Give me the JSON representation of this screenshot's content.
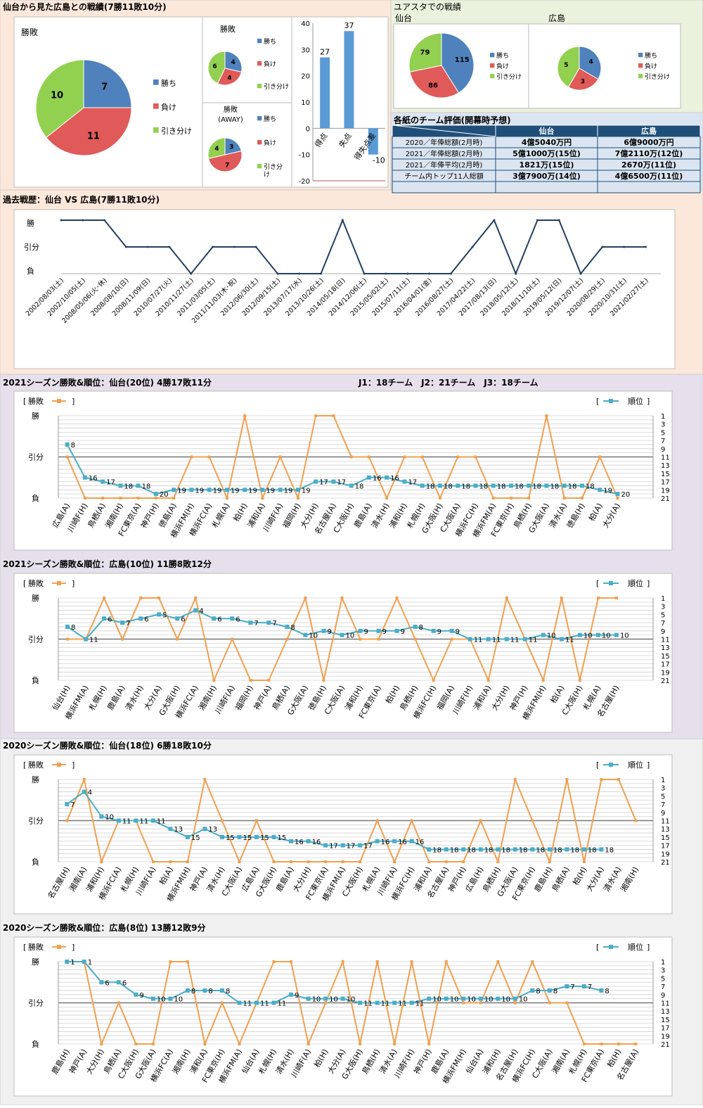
{
  "colors": {
    "win": "#4f81bd",
    "lose": "#e05a5a",
    "draw": "#92d050",
    "orange": "#f0a050",
    "teal": "#4bacc6",
    "navy": "#243f60",
    "header": "#1f4e79"
  },
  "sections": {
    "summary_title": "仙台から見た広島との戦績(7勝11敗10分)",
    "yuasuta_title": "ユアスタでの戦績",
    "yuasuta_sendai": "仙台",
    "yuasuta_hiroshima": "広島",
    "eval_title": "各紙のチーム評価(開幕時予想)",
    "history_title": "過去戦歴：仙台 VS 広島(7勝11敗10分)",
    "s2021_sendai_title": "2021シーズン勝敗&順位：仙台(20位) 4勝17敗11分",
    "league_info": "J1：18チーム　J2：21チーム　J3：18チーム",
    "s2021_hiroshima_title": "2021シーズン勝敗&順位：広島(10位) 11勝8敗12分",
    "s2020_sendai_title": "2020シーズン勝敗&順位：仙台(18位) 6勝18敗10分",
    "s2020_hiroshima_title": "2020シーズン勝敗&順位：広島(8位) 13勝12敗9分"
  },
  "legend": {
    "win": "勝ち",
    "lose": "負け",
    "draw": "引き分け",
    "draw_wrapped": [
      "引き分",
      "け"
    ],
    "result": "勝敗",
    "rank": "順位",
    "bracket_open": "[",
    "bracket_close": "]",
    "ylabel_win": "勝",
    "ylabel_draw": "引分",
    "ylabel_lose": "負"
  },
  "table": {
    "headers": [
      "",
      "仙台",
      "広島"
    ],
    "rows": [
      [
        "2020／年俸総額(2月時)",
        "4億5040万円",
        "6億9000万円"
      ],
      [
        "2021／年俸総額(2月時)",
        "5億1000万(15位)",
        "7億2110万(12位)"
      ],
      [
        "2021／年俸平均(2月時)",
        "1821万(15位)",
        "2670万(11位)"
      ],
      [
        "チーム内トップ11人総額",
        "3億7900万(14位)",
        "4億6500万(11位)"
      ],
      [
        "",
        "",
        ""
      ]
    ]
  },
  "chart_data": [
    {
      "id": "total",
      "type": "pie",
      "title": "勝敗",
      "categories": [
        "勝ち",
        "負け",
        "引き分け"
      ],
      "values": [
        7,
        11,
        10
      ]
    },
    {
      "id": "home",
      "type": "pie",
      "title": "勝敗",
      "categories": [
        "勝ち",
        "負け",
        "引き分け"
      ],
      "values": [
        4,
        4,
        6
      ]
    },
    {
      "id": "away",
      "type": "pie",
      "title": "勝敗\n(AWAY)",
      "categories": [
        "勝ち",
        "負け",
        "引き分け"
      ],
      "values": [
        3,
        7,
        4
      ]
    },
    {
      "id": "goals",
      "type": "bar",
      "categories": [
        "得点",
        "失点",
        "得失点差"
      ],
      "values": [
        27,
        37,
        -10
      ],
      "ylim": [
        -20,
        40
      ],
      "yticks": [
        -20,
        -10,
        0,
        10,
        20,
        30,
        40
      ]
    },
    {
      "id": "yua_sendai",
      "type": "pie",
      "categories": [
        "勝ち",
        "負け",
        "引き分け"
      ],
      "values": [
        115,
        86,
        79
      ]
    },
    {
      "id": "yua_hiroshima",
      "type": "pie",
      "categories": [
        "勝ち",
        "負け",
        "引き分け"
      ],
      "values": [
        4,
        3,
        5
      ]
    },
    {
      "id": "history",
      "type": "line",
      "categories": [
        "2002/08/03(土)",
        "2002/10/05(土)",
        "2008/05/06(火･休)",
        "2008/08/10(日)",
        "2008/11/09(日)",
        "2010/07/27(火)",
        "2010/11/27(土)",
        "2011/03/05(土)",
        "2011/11/03(木･祝)",
        "2012/06/30(土)",
        "2012/09/15(土)",
        "2013/07/17(水)",
        "2013/10/26(土)",
        "2014/05/18(日)",
        "2014/12/06(土)",
        "2015/05/02(土)",
        "2015/07/11(土)",
        "2016/04/01(金)",
        "2016/08/27(土)",
        "2017/04/22(土)",
        "2017/08/13(日)",
        "2018/05/12(土)",
        "2018/11/10(土)",
        "2019/05/12(日)",
        "2019/12/07(土)",
        "2020/08/29(土)",
        "2020/10/31(土)",
        "2021/02/27(土)"
      ],
      "values": [
        2,
        2,
        2,
        1,
        1,
        1,
        0,
        1,
        1,
        1,
        0,
        0,
        0,
        2,
        0,
        0,
        0,
        0,
        0,
        1,
        2,
        0,
        2,
        2,
        0,
        1,
        1,
        1
      ]
    },
    {
      "id": "s2021_sendai",
      "type": "line",
      "categories": [
        "広島(A)",
        "川崎F(H)",
        "鳥栖(A)",
        "湘南(H)",
        "FC東京(A)",
        "神戸(H)",
        "徳島(A)",
        "横浜FM(H)",
        "横浜FC(A)",
        "札幌(A)",
        "柏(H)",
        "浦和(A)",
        "川崎F(A)",
        "福岡(H)",
        "大分(H)",
        "名古屋(A)",
        "C大阪(H)",
        "鹿島(A)",
        "清水(H)",
        "浦和(H)",
        "札幌(H)",
        "G大阪(H)",
        "C大阪(A)",
        "横浜FC(H)",
        "横浜FM(A)",
        "FC東京(H)",
        "鳥栖(H)",
        "G大阪(A)",
        "清水(A)",
        "徳島(H)",
        "柏(A)",
        "大分(A)"
      ],
      "results": [
        1,
        0,
        0,
        0,
        0,
        0,
        0,
        1,
        1,
        0,
        2,
        0,
        1,
        0,
        2,
        2,
        1,
        1,
        0,
        1,
        1,
        0,
        1,
        1,
        0,
        0,
        0,
        2,
        0,
        0,
        1,
        0
      ],
      "ranks": [
        8,
        16,
        17,
        18,
        18,
        20,
        19,
        19,
        19,
        19,
        19,
        19,
        19,
        19,
        17,
        17,
        18,
        16,
        16,
        17,
        18,
        18,
        18,
        18,
        18,
        18,
        18,
        18,
        18,
        18,
        19,
        20
      ]
    },
    {
      "id": "s2021_hiroshima",
      "type": "line",
      "categories": [
        "仙台(H)",
        "横浜FM(A)",
        "札幌(H)",
        "鹿島(A)",
        "清水(H)",
        "大分(A)",
        "G大阪(H)",
        "横浜FC(A)",
        "湘南(H)",
        "川崎F(A)",
        "福岡(H)",
        "神戸(A)",
        "鳥栖(A)",
        "G大阪(A)",
        "徳島(H)",
        "C大阪(A)",
        "浦和(H)",
        "FC東京(A)",
        "柏(H)",
        "鳥栖(H)",
        "横浜FC(H)",
        "福岡(A)",
        "川崎F(H)",
        "浦和(A)",
        "大分(H)",
        "神戸(H)",
        "横浜FM(H)",
        "柏(A)",
        "C大阪(H)",
        "札幌(A)",
        "名古屋(H)"
      ],
      "results": [
        1,
        1,
        2,
        1,
        2,
        2,
        1,
        2,
        0,
        1,
        0,
        0,
        1,
        2,
        0,
        2,
        1,
        1,
        2,
        1,
        0,
        1,
        1,
        0,
        2,
        1,
        0,
        2,
        0,
        2,
        2
      ],
      "ranks": [
        8,
        11,
        6,
        7,
        6,
        5,
        6,
        4,
        6,
        6,
        7,
        7,
        8,
        10,
        9,
        10,
        9,
        9,
        9,
        8,
        9,
        9,
        11,
        11,
        11,
        11,
        10,
        11,
        10,
        10,
        10
      ]
    },
    {
      "id": "s2020_sendai",
      "type": "line",
      "categories": [
        "名古屋(H)",
        "湘南(A)",
        "浦和(H)",
        "横浜FC(A)",
        "札幌(H)",
        "川崎F(A)",
        "柏(A)",
        "横浜FM(H)",
        "神戸(A)",
        "清水(H)",
        "C大阪(A)",
        "広島(A)",
        "G大阪(H)",
        "鹿島(A)",
        "大分(H)",
        "FC東京(A)",
        "横浜FM(A)",
        "C大阪(H)",
        "札幌(A)",
        "川崎F(A)",
        "横浜FC(H)",
        "浦和(A)",
        "名古屋(A)",
        "神戸(H)",
        "広島(H)",
        "鳥栖(H)",
        "G大阪(A)",
        "FC東京(H)",
        "鹿島(H)",
        "鳥栖(A)",
        "柏(H)",
        "大分(A)",
        "清水(A)",
        "湘南(H)"
      ],
      "results": [
        1,
        2,
        0,
        1,
        1,
        0,
        0,
        0,
        2,
        1,
        0,
        1,
        0,
        0,
        0,
        0,
        0,
        0,
        1,
        0,
        1,
        0,
        0,
        0,
        1,
        0,
        2,
        1,
        0,
        2,
        0,
        2,
        2,
        1
      ],
      "ranks": [
        7,
        4,
        10,
        11,
        11,
        11,
        13,
        15,
        13,
        15,
        15,
        15,
        15,
        16,
        16,
        17,
        17,
        17,
        16,
        16,
        16,
        18,
        18,
        18,
        18,
        18,
        18,
        18,
        18,
        18,
        18,
        18
      ]
    },
    {
      "id": "s2020_hiroshima",
      "type": "line",
      "categories": [
        "鹿島(H)",
        "神戸(A)",
        "大分(H)",
        "鳥栖(A)",
        "C大阪(H)",
        "G大阪(A)",
        "横浜FC(A)",
        "湘南(H)",
        "浦和(A)",
        "FC東京(H)",
        "横浜FM(A)",
        "仙台(A)",
        "札幌(H)",
        "清水(H)",
        "川崎F(A)",
        "柏(H)",
        "大分(A)",
        "G大阪(H)",
        "鳥栖(H)",
        "清水(A)",
        "川崎F(H)",
        "神戸(H)",
        "鹿島(A)",
        "横浜FM(H)",
        "仙台(A)",
        "浦和(H)",
        "名古屋(H)",
        "横浜FC(H)",
        "C大阪(A)",
        "湘南(A)",
        "札幌(H)",
        "FC東京(A)",
        "柏(H)",
        "名古屋(A)"
      ],
      "results": [
        2,
        2,
        0,
        1,
        0,
        0,
        2,
        2,
        0,
        1,
        0,
        1,
        2,
        2,
        0,
        1,
        2,
        0,
        2,
        0,
        2,
        0,
        2,
        1,
        1,
        2,
        1,
        2,
        1,
        1,
        0,
        0,
        0,
        0
      ],
      "ranks": [
        1,
        1,
        6,
        6,
        9,
        10,
        10,
        8,
        8,
        8,
        11,
        11,
        11,
        9,
        10,
        10,
        10,
        11,
        11,
        11,
        11,
        10,
        10,
        10,
        10,
        10,
        10,
        8,
        8,
        7,
        7,
        8
      ]
    }
  ]
}
